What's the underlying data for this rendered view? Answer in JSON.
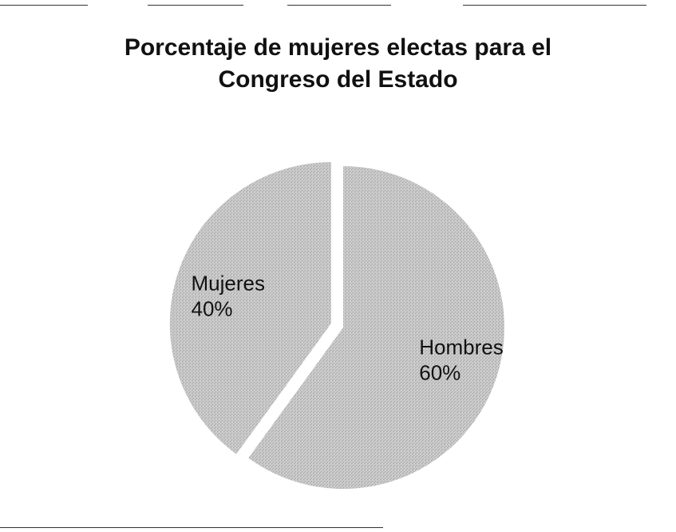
{
  "chart_data": {
    "type": "pie",
    "title": "Porcentaje de mujeres electas para el Congreso del Estado",
    "title_lines": [
      "Porcentaje de mujeres electas para el",
      "Congreso del Estado"
    ],
    "slices": [
      {
        "label": "Hombres",
        "value": 60,
        "display": "60%",
        "color": "#c8c8c8"
      },
      {
        "label": "Mujeres",
        "value": 40,
        "display": "40%",
        "color": "#bdbdbd"
      }
    ],
    "exploded": "Mujeres",
    "legend": "none"
  }
}
